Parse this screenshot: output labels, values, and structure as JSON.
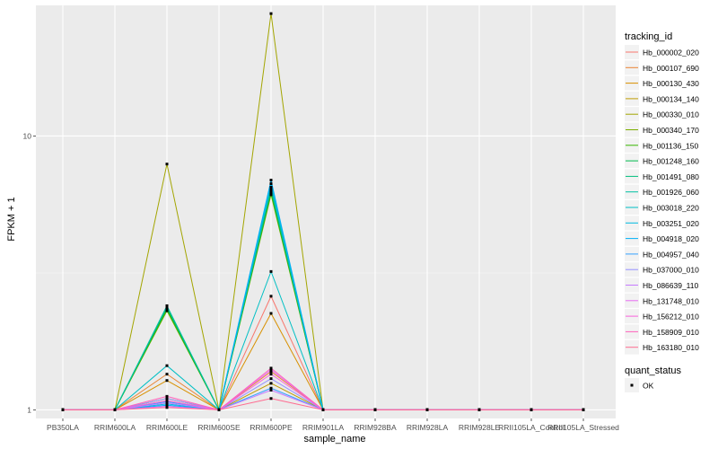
{
  "chart_data": {
    "type": "line",
    "xlabel": "sample_name",
    "ylabel": "FPKM + 1",
    "y_scale": "log10",
    "ylim": [
      0.93,
      30
    ],
    "y_ticks": [
      1,
      10
    ],
    "y_tick_labels": [
      "1",
      "10"
    ],
    "grid": true,
    "legend_placement": "right",
    "categories": [
      "PB350LA",
      "RRIM600LA",
      "RRIM600LE",
      "RRIM600SE",
      "RRIM600PE",
      "RRIM901LA",
      "RRIM928BA",
      "RRIM928LA",
      "RRIM928LE",
      "RRII105LA_Control",
      "RRII105LA_Stressed"
    ],
    "legend_color": {
      "title": "tracking_id",
      "entries": [
        "Hb_000002_020",
        "Hb_000107_690",
        "Hb_000130_430",
        "Hb_000134_140",
        "Hb_000330_010",
        "Hb_000340_170",
        "Hb_001136_150",
        "Hb_001248_160",
        "Hb_001491_080",
        "Hb_001926_060",
        "Hb_003018_220",
        "Hb_003251_020",
        "Hb_004918_020",
        "Hb_004957_040",
        "Hb_037000_010",
        "Hb_086639_110",
        "Hb_131748_010",
        "Hb_156212_010",
        "Hb_158909_010",
        "Hb_163180_010"
      ]
    },
    "legend_shape": {
      "title": "quant_status",
      "entries": [
        "OK"
      ]
    },
    "series": [
      {
        "name": "Hb_000002_020",
        "color": "#F8766D",
        "values": [
          1,
          1,
          1.08,
          1,
          2.6,
          1,
          1,
          1,
          1,
          1,
          1
        ]
      },
      {
        "name": "Hb_000107_690",
        "color": "#EA8331",
        "values": [
          1,
          1,
          1.35,
          1,
          1.38,
          1,
          1,
          1,
          1,
          1,
          1
        ]
      },
      {
        "name": "Hb_000130_430",
        "color": "#D89000",
        "values": [
          1,
          1,
          1.28,
          1,
          2.25,
          1,
          1,
          1,
          1,
          1,
          1
        ]
      },
      {
        "name": "Hb_000134_140",
        "color": "#C09B00",
        "values": [
          1,
          1,
          1.1,
          1,
          1.25,
          1,
          1,
          1,
          1,
          1,
          1
        ]
      },
      {
        "name": "Hb_000330_010",
        "color": "#A3A500",
        "values": [
          1,
          1,
          7.9,
          1,
          28,
          1,
          1,
          1,
          1,
          1,
          1
        ]
      },
      {
        "name": "Hb_000340_170",
        "color": "#7CAE00",
        "values": [
          1,
          1,
          2.3,
          1,
          6.1,
          1,
          1,
          1,
          1,
          1,
          1
        ]
      },
      {
        "name": "Hb_001136_150",
        "color": "#39B600",
        "values": [
          1,
          1,
          2.32,
          1,
          6.2,
          1,
          1,
          1,
          1,
          1,
          1
        ]
      },
      {
        "name": "Hb_001248_160",
        "color": "#00BB4E",
        "values": [
          1,
          1,
          2.35,
          1,
          6.3,
          1,
          1,
          1,
          1,
          1,
          1
        ]
      },
      {
        "name": "Hb_001491_080",
        "color": "#00BF7D",
        "values": [
          1,
          1,
          2.38,
          1,
          6.4,
          1,
          1,
          1,
          1,
          1,
          1
        ]
      },
      {
        "name": "Hb_001926_060",
        "color": "#00C1A3",
        "values": [
          1,
          1,
          2.4,
          1,
          6.5,
          1,
          1,
          1,
          1,
          1,
          1
        ]
      },
      {
        "name": "Hb_003018_220",
        "color": "#00BFC4",
        "values": [
          1,
          1,
          1.45,
          1,
          3.2,
          1,
          1,
          1,
          1,
          1,
          1
        ]
      },
      {
        "name": "Hb_003251_020",
        "color": "#00BAE0",
        "values": [
          1,
          1,
          1.05,
          1,
          6.7,
          1,
          1,
          1,
          1,
          1,
          1
        ]
      },
      {
        "name": "Hb_004918_020",
        "color": "#00B0F6",
        "values": [
          1,
          1,
          1.04,
          1,
          6.9,
          1,
          1,
          1,
          1,
          1,
          1
        ]
      },
      {
        "name": "Hb_004957_040",
        "color": "#35A2FF",
        "values": [
          1,
          1,
          1.07,
          1,
          1.2,
          1,
          1,
          1,
          1,
          1,
          1
        ]
      },
      {
        "name": "Hb_037000_010",
        "color": "#9590FF",
        "values": [
          1,
          1,
          1.1,
          1,
          1.3,
          1,
          1,
          1,
          1,
          1,
          1
        ]
      },
      {
        "name": "Hb_086639_110",
        "color": "#C77CFF",
        "values": [
          1,
          1,
          1.06,
          1,
          1.18,
          1,
          1,
          1,
          1,
          1,
          1
        ]
      },
      {
        "name": "Hb_131748_010",
        "color": "#E76BF3",
        "values": [
          1,
          1,
          1.03,
          1,
          1.4,
          1,
          1,
          1,
          1,
          1,
          1
        ]
      },
      {
        "name": "Hb_156212_010",
        "color": "#FA62DB",
        "values": [
          1,
          1,
          1.08,
          1,
          1.35,
          1,
          1,
          1,
          1,
          1,
          1
        ]
      },
      {
        "name": "Hb_158909_010",
        "color": "#FF62BC",
        "values": [
          1,
          1,
          1.12,
          1,
          1.42,
          1,
          1,
          1,
          1,
          1,
          1
        ]
      },
      {
        "name": "Hb_163180_010",
        "color": "#FF6C91",
        "values": [
          1,
          1,
          1.02,
          1,
          1.1,
          1,
          1,
          1,
          1,
          1,
          1
        ]
      }
    ]
  }
}
